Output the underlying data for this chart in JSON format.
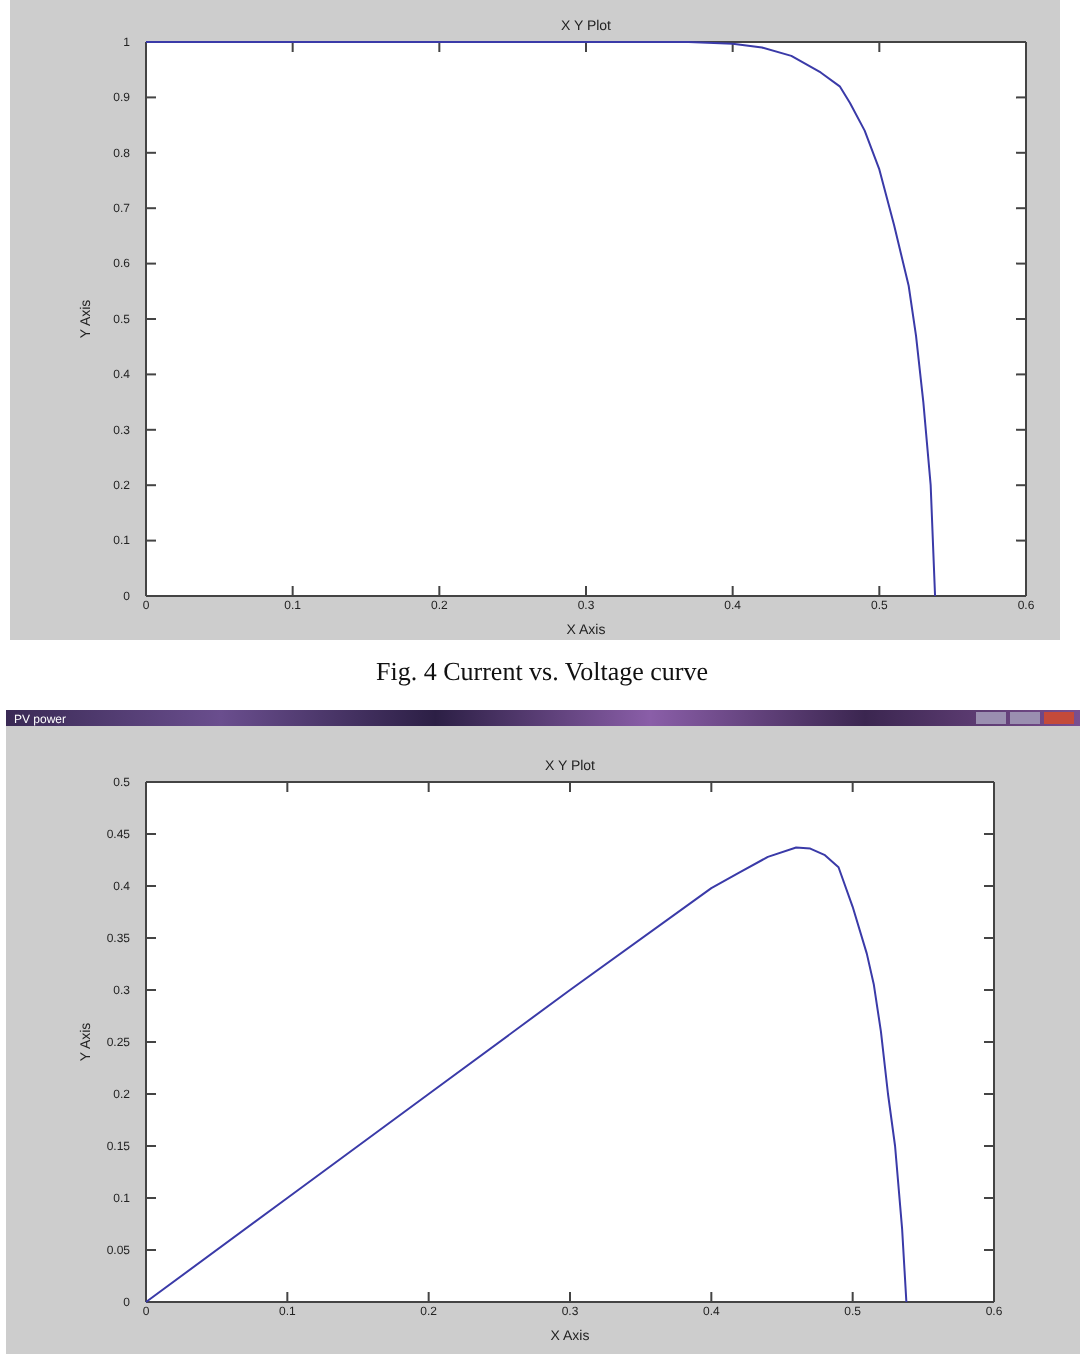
{
  "chart_data": [
    {
      "type": "line",
      "title": "X Y Plot",
      "xlabel": "X Axis",
      "ylabel": "Y Axis",
      "annotations": [
        "Fig. 4 Current vs. Voltage curve"
      ],
      "x": [
        0,
        0.37,
        0.4,
        0.42,
        0.44,
        0.46,
        0.473,
        0.48,
        0.49,
        0.5,
        0.51,
        0.52,
        0.525,
        0.53,
        0.535,
        0.538
      ],
      "series": [
        {
          "color": "#3a3aa8",
          "values": [
            1,
            1,
            0.997,
            0.99,
            0.975,
            0.945,
            0.92,
            0.89,
            0.84,
            0.77,
            0.67,
            0.56,
            0.47,
            0.35,
            0.2,
            0
          ]
        }
      ],
      "xlim": [
        0,
        0.6
      ],
      "xticks": [
        0,
        0.1,
        0.2,
        0.3,
        0.4,
        0.5,
        0.6
      ],
      "ylim": [
        0,
        1
      ],
      "yticks": [
        0,
        0.1,
        0.2,
        0.3,
        0.4,
        0.5,
        0.6,
        0.7,
        0.8,
        0.9,
        1
      ]
    },
    {
      "type": "line",
      "title": "X Y Plot",
      "xlabel": "X Axis",
      "ylabel": "Y Axis",
      "annotations": [
        "PV power"
      ],
      "x": [
        0,
        0.1,
        0.2,
        0.3,
        0.4,
        0.42,
        0.44,
        0.46,
        0.47,
        0.48,
        0.49,
        0.5,
        0.51,
        0.515,
        0.52,
        0.525,
        0.53,
        0.535,
        0.538
      ],
      "series": [
        {
          "color": "#3a3aa8",
          "values": [
            0,
            0.1,
            0.2,
            0.3,
            0.398,
            0.413,
            0.428,
            0.437,
            0.436,
            0.43,
            0.418,
            0.38,
            0.335,
            0.305,
            0.26,
            0.2,
            0.15,
            0.07,
            0
          ]
        }
      ],
      "xlim": [
        0,
        0.6
      ],
      "xticks": [
        0,
        0.1,
        0.2,
        0.3,
        0.4,
        0.5,
        0.6
      ],
      "ylim": [
        0,
        0.5
      ],
      "yticks": [
        0,
        0.05,
        0.1,
        0.15,
        0.2,
        0.25,
        0.3,
        0.35,
        0.4,
        0.45,
        0.5
      ]
    }
  ]
}
